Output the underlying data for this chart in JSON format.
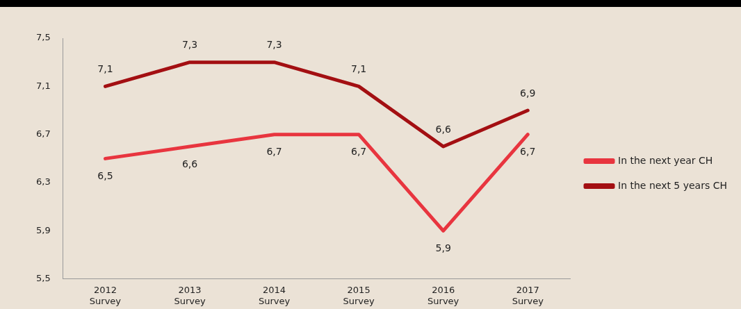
{
  "chart_data": {
    "type": "line",
    "categories": [
      "2012 Survey",
      "2013 Survey",
      "2014 Survey",
      "2015 Survey",
      "2016 Survey",
      "2017 Survey"
    ],
    "series": [
      {
        "name": "In the next year CH",
        "color": "#e8353f",
        "values": [
          6.5,
          6.6,
          6.7,
          6.7,
          5.9,
          6.7
        ],
        "value_labels": [
          "6,5",
          "6,6",
          "6,7",
          "6,7",
          "5,9",
          "6,7"
        ]
      },
      {
        "name": "In the next 5 years CH",
        "color": "#a30f12",
        "values": [
          7.1,
          7.3,
          7.3,
          7.1,
          6.6,
          6.9
        ],
        "value_labels": [
          "7,1",
          "7,3",
          "7,3",
          "7,1",
          "6,6",
          "6,9"
        ]
      }
    ],
    "ylim": [
      5.5,
      7.5
    ],
    "yticks": [
      {
        "value": 5.5,
        "label": "5,5"
      },
      {
        "value": 5.9,
        "label": "5,9"
      },
      {
        "value": 6.3,
        "label": "6,3"
      },
      {
        "value": 6.7,
        "label": "6,7"
      },
      {
        "value": 7.1,
        "label": "7,1"
      },
      {
        "value": 7.5,
        "label": "7,5"
      }
    ],
    "grid": false,
    "legend": "right",
    "marker": "none",
    "line_style": "solid"
  }
}
